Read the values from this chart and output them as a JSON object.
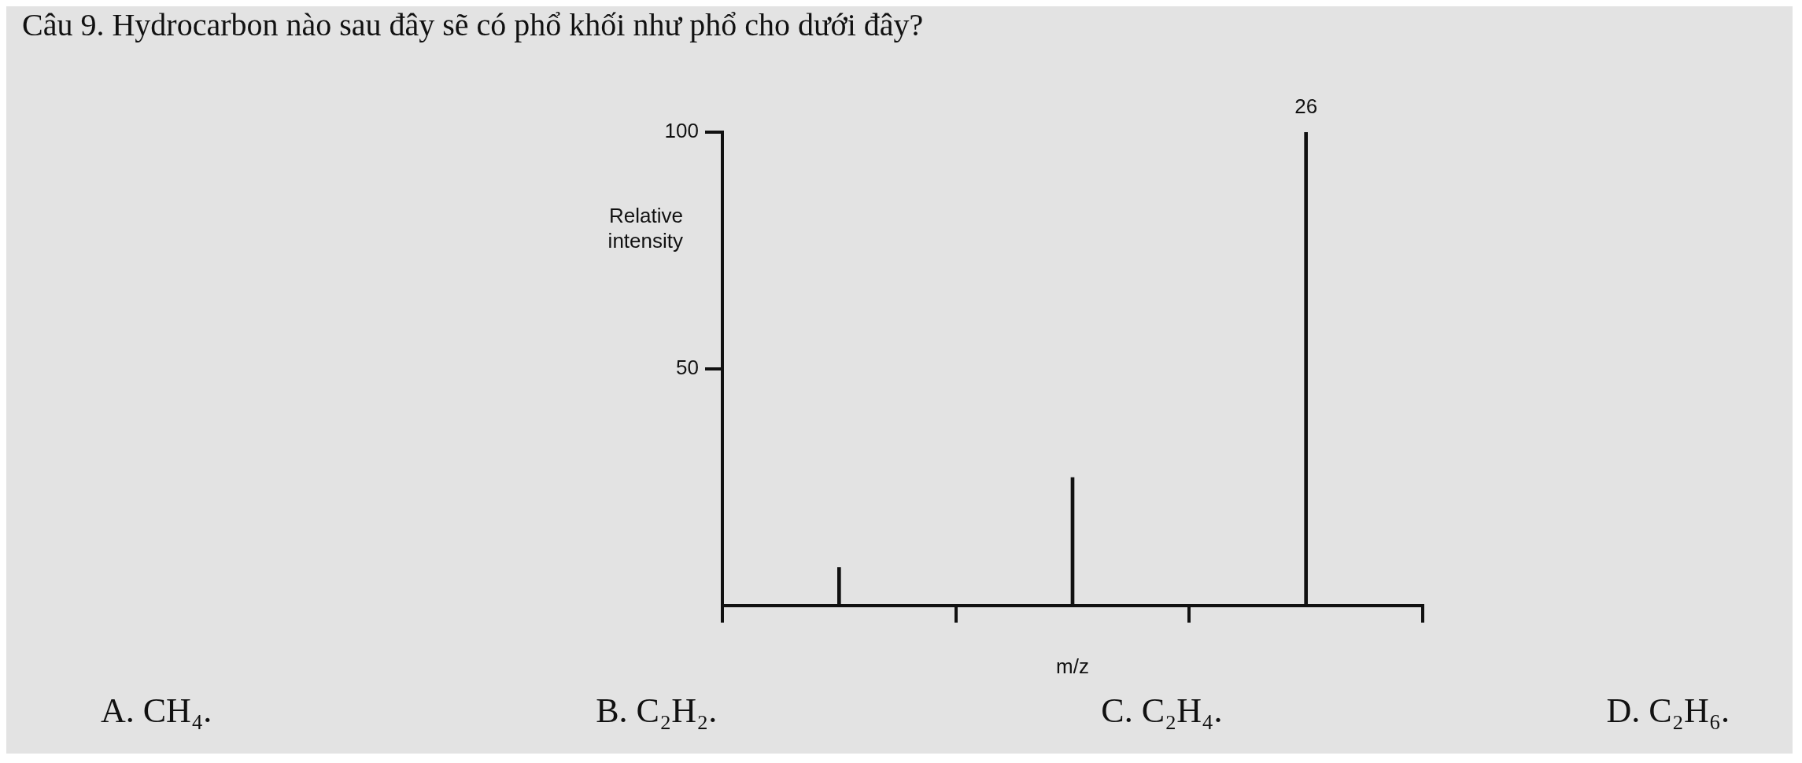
{
  "chart_data": {
    "type": "bar",
    "title": "Câu 9. Hydrocarbon nào sau đây sẽ có phổ khối như phổ cho dưới đây?",
    "xlabel": "m/z",
    "ylabel": "Relative intensity",
    "categories": [
      null,
      null,
      null
    ],
    "values": [
      8,
      27,
      100
    ],
    "color": "#111111",
    "ylim": [
      0,
      100
    ],
    "yticks": [
      50,
      100
    ],
    "grid": false,
    "legend": false,
    "annotations": [
      {
        "text": "26",
        "y": 100
      },
      "A. CH₄.",
      "B. C₂H₂.",
      "C. C₂H₄.",
      "D. C₂H₆."
    ]
  }
}
